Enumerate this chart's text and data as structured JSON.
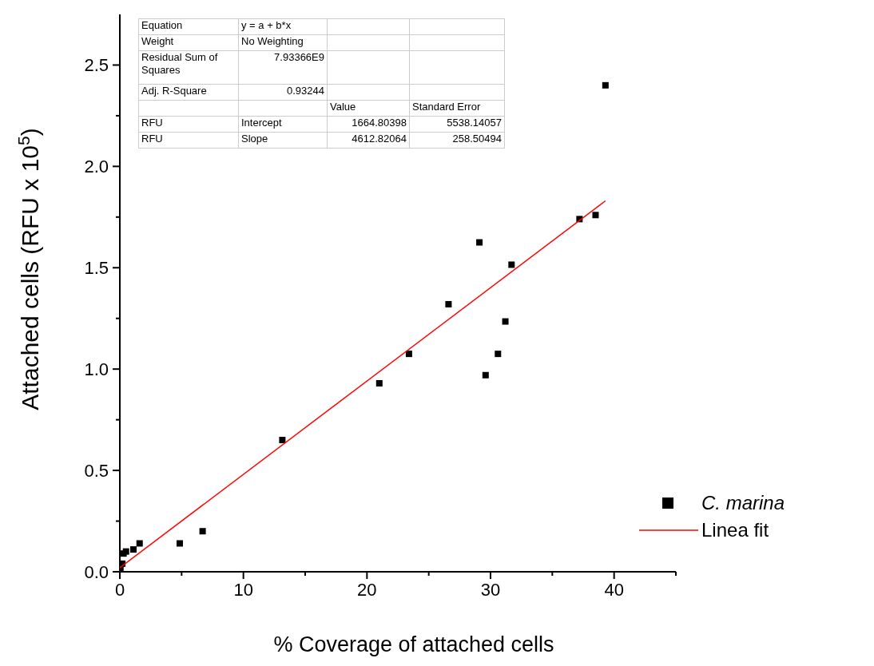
{
  "chart_data": {
    "type": "scatter",
    "xlabel": "% Coverage of attached cells",
    "ylabel": "Attached cells (RFU x 10$^{5}$)",
    "xlim": [
      0,
      45
    ],
    "ylim": [
      0,
      2.75
    ],
    "xticks": [
      0,
      {
        "value": 5,
        "label": null
      },
      10,
      {
        "value": 15,
        "label": null
      },
      20,
      {
        "value": 25,
        "label": null
      },
      30,
      {
        "value": 35,
        "label": null
      },
      40,
      {
        "value": 45,
        "label": null
      }
    ],
    "yticks": [
      "0.0",
      {
        "value": 0.25,
        "label": null
      },
      {
        "value": 0.5,
        "label": "0.5"
      },
      {
        "value": 0.75,
        "label": null
      },
      {
        "value": 1,
        "label": "1.0"
      },
      {
        "value": 1.25,
        "label": null
      },
      {
        "value": 1.5,
        "label": "1.5"
      },
      {
        "value": 1.75,
        "label": null
      },
      {
        "value": 2,
        "label": "2.0"
      },
      {
        "value": 2.25,
        "label": null
      },
      {
        "value": 2.5,
        "label": "2.5"
      }
    ],
    "grid": false,
    "legend": "bottom right",
    "series": [
      {
        "name": "C. marina",
        "marker": "square",
        "color": "#000000",
        "x": [
          0.05,
          0.2,
          0.3,
          0.5,
          1.1,
          1.6,
          4.85,
          6.7,
          13.15,
          21.0,
          23.4,
          26.6,
          29.1,
          29.6,
          30.6,
          31.2,
          31.7,
          37.2,
          38.5,
          39.3
        ],
        "values": [
          0.02,
          0.04,
          0.09,
          0.1,
          0.11,
          0.14,
          0.14,
          0.2,
          0.65,
          0.93,
          1.075,
          1.32,
          1.625,
          0.97,
          1.075,
          1.235,
          1.515,
          1.74,
          1.76,
          2.4
        ]
      },
      {
        "name": "Linea fit",
        "type": "line",
        "marker": "none",
        "color": "#ff0000",
        "line_style": "solid",
        "x": [
          0,
          39.3
        ],
        "values": [
          0.02,
          1.83
        ]
      }
    ],
    "annotations": [
      "Equation",
      "y = a + b*x",
      "Weight",
      "No Weighting",
      "Residual Sum of Squares",
      "7.93366E9",
      "Adj. R-Square",
      "0.93244",
      "Value",
      "Standard Error",
      "RFU",
      "Intercept",
      "1664.80398",
      "5538.14057",
      "RFU",
      "Slope",
      "4612.82064",
      "258.50494"
    ]
  }
}
